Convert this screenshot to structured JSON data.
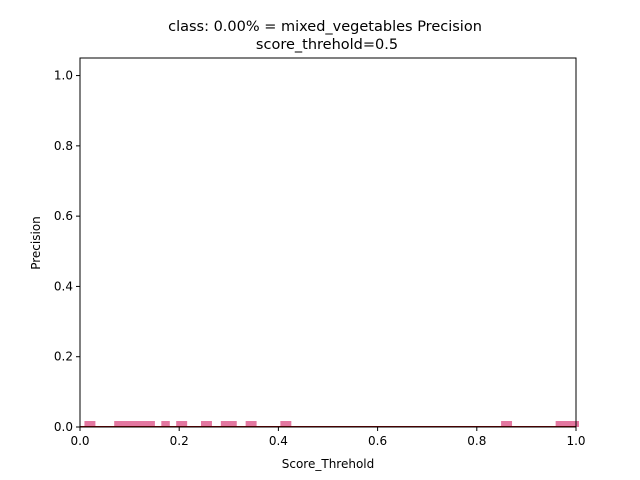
{
  "chart_data": {
    "type": "scatter",
    "title": "class: 0.00% = mixed_vegetables Precision",
    "subtitle": "score_threhold=0.5",
    "xlabel": "Score_Threhold",
    "ylabel": "Precision",
    "xlim": [
      0.0,
      1.0
    ],
    "ylim": [
      0.0,
      1.05
    ],
    "x_ticks": [
      "0.0",
      "0.2",
      "0.4",
      "0.6",
      "0.8",
      "1.0"
    ],
    "y_ticks": [
      "0.0",
      "0.2",
      "0.4",
      "0.6",
      "0.8",
      "1.0"
    ],
    "grid": false,
    "marker_color": "#e377a0",
    "line_color": "#8b0000",
    "series": [
      {
        "x": [
          0.015,
          0.02,
          0.025,
          0.075,
          0.08,
          0.085,
          0.09,
          0.095,
          0.1,
          0.105,
          0.11,
          0.12,
          0.125,
          0.13,
          0.135,
          0.14,
          0.145,
          0.17,
          0.175,
          0.2,
          0.205,
          0.21,
          0.25,
          0.255,
          0.26,
          0.29,
          0.295,
          0.3,
          0.305,
          0.31,
          0.34,
          0.345,
          0.35,
          0.41,
          0.415,
          0.42,
          0.855,
          0.86,
          0.865,
          0.965,
          0.97,
          0.975,
          0.98,
          0.985,
          0.99,
          0.995,
          1.0
        ],
        "y": [
          0.0,
          0.0,
          0.0,
          0.0,
          0.0,
          0.0,
          0.0,
          0.0,
          0.0,
          0.0,
          0.0,
          0.0,
          0.0,
          0.0,
          0.0,
          0.0,
          0.0,
          0.0,
          0.0,
          0.0,
          0.0,
          0.0,
          0.0,
          0.0,
          0.0,
          0.0,
          0.0,
          0.0,
          0.0,
          0.0,
          0.0,
          0.0,
          0.0,
          0.0,
          0.0,
          0.0,
          0.0,
          0.0,
          0.0,
          0.0,
          0.0,
          0.0,
          0.0,
          0.0,
          0.0,
          0.0,
          0.0
        ]
      }
    ]
  }
}
